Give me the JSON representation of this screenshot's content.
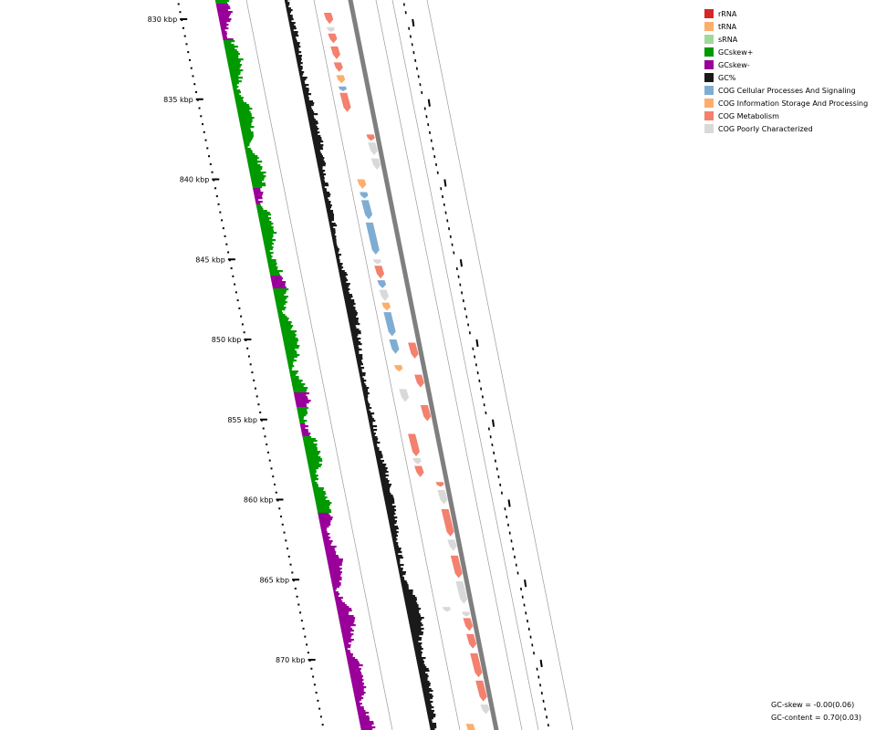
{
  "legend": [
    {
      "label": "rRNA",
      "color": "#d62728"
    },
    {
      "label": "tRNA",
      "color": "#fdae6b"
    },
    {
      "label": "sRNA",
      "color": "#a1d99b"
    },
    {
      "label": "GCskew+",
      "color": "#009900"
    },
    {
      "label": "GCskew-",
      "color": "#990099"
    },
    {
      "label": "GC%",
      "color": "#1a1a1a"
    },
    {
      "label": "COG Cellular Processes And Signaling",
      "color": "#7fadd2"
    },
    {
      "label": "COG Information Storage And Processing",
      "color": "#fdae6b"
    },
    {
      "label": "COG Metabolism",
      "color": "#f4806e"
    },
    {
      "label": "COG Poorly Characterized",
      "color": "#d9d9d9"
    }
  ],
  "ticks": [
    {
      "kbp": 830,
      "label": "830 kbp"
    },
    {
      "kbp": 835,
      "label": "835 kbp"
    },
    {
      "kbp": 840,
      "label": "840 kbp"
    },
    {
      "kbp": 845,
      "label": "845 kbp"
    },
    {
      "kbp": 850,
      "label": "850 kbp"
    },
    {
      "kbp": 855,
      "label": "855 kbp"
    },
    {
      "kbp": 860,
      "label": "860 kbp"
    },
    {
      "kbp": 865,
      "label": "865 kbp"
    },
    {
      "kbp": 870,
      "label": "870 kbp"
    }
  ],
  "stats": {
    "gc_skew": "GC-skew = -0.00(0.06)",
    "gc_content": "GC-content = 0.70(0.03)"
  },
  "features": [
    {
      "start": 829.6,
      "end": 830.3,
      "cog": "COG Metabolism",
      "ring": "outer"
    },
    {
      "start": 830.5,
      "end": 830.8,
      "cog": "COG Poorly Characterized",
      "ring": "outer"
    },
    {
      "start": 830.9,
      "end": 831.5,
      "cog": "COG Metabolism",
      "ring": "outer"
    },
    {
      "start": 831.7,
      "end": 832.5,
      "cog": "COG Metabolism",
      "ring": "outer"
    },
    {
      "start": 832.7,
      "end": 833.3,
      "cog": "COG Metabolism",
      "ring": "outer"
    },
    {
      "start": 833.5,
      "end": 834.0,
      "cog": "COG Information Storage And Processing",
      "ring": "outer"
    },
    {
      "start": 834.2,
      "end": 834.5,
      "cog": "COG Cellular Processes And Signaling",
      "ring": "outer"
    },
    {
      "start": 834.6,
      "end": 835.8,
      "cog": "COG Metabolism",
      "ring": "outer"
    },
    {
      "start": 837.2,
      "end": 837.6,
      "cog": "COG Metabolism",
      "ring": "inner"
    },
    {
      "start": 837.7,
      "end": 838.5,
      "cog": "COG Poorly Characterized",
      "ring": "inner"
    },
    {
      "start": 838.7,
      "end": 839.4,
      "cog": "COG Poorly Characterized",
      "ring": "inner"
    },
    {
      "start": 840.0,
      "end": 840.6,
      "cog": "COG Information Storage And Processing",
      "ring": "outer"
    },
    {
      "start": 840.8,
      "end": 841.2,
      "cog": "COG Cellular Processes And Signaling",
      "ring": "outer"
    },
    {
      "start": 841.3,
      "end": 842.5,
      "cog": "COG Cellular Processes And Signaling",
      "ring": "outer"
    },
    {
      "start": 842.7,
      "end": 844.7,
      "cog": "COG Cellular Processes And Signaling",
      "ring": "outer"
    },
    {
      "start": 845.0,
      "end": 845.3,
      "cog": "COG Poorly Characterized",
      "ring": "outer"
    },
    {
      "start": 845.4,
      "end": 846.2,
      "cog": "COG Metabolism",
      "ring": "outer"
    },
    {
      "start": 846.3,
      "end": 846.8,
      "cog": "COG Cellular Processes And Signaling",
      "ring": "outer"
    },
    {
      "start": 846.9,
      "end": 847.6,
      "cog": "COG Poorly Characterized",
      "ring": "outer"
    },
    {
      "start": 847.7,
      "end": 848.2,
      "cog": "COG Information Storage And Processing",
      "ring": "outer"
    },
    {
      "start": 848.3,
      "end": 849.8,
      "cog": "COG Cellular Processes And Signaling",
      "ring": "outer"
    },
    {
      "start": 850.0,
      "end": 850.9,
      "cog": "COG Cellular Processes And Signaling",
      "ring": "outer"
    },
    {
      "start": 850.2,
      "end": 851.2,
      "cog": "COG Metabolism",
      "ring": "inner"
    },
    {
      "start": 851.6,
      "end": 852.0,
      "cog": "COG Information Storage And Processing",
      "ring": "outer"
    },
    {
      "start": 852.2,
      "end": 853.0,
      "cog": "COG Metabolism",
      "ring": "inner"
    },
    {
      "start": 853.1,
      "end": 853.9,
      "cog": "COG Poorly Characterized",
      "ring": "outer"
    },
    {
      "start": 854.1,
      "end": 855.1,
      "cog": "COG Metabolism",
      "ring": "inner"
    },
    {
      "start": 855.9,
      "end": 857.3,
      "cog": "COG Metabolism",
      "ring": "outer"
    },
    {
      "start": 857.4,
      "end": 857.8,
      "cog": "COG Poorly Characterized",
      "ring": "outer"
    },
    {
      "start": 857.9,
      "end": 858.6,
      "cog": "COG Metabolism",
      "ring": "outer"
    },
    {
      "start": 858.9,
      "end": 859.2,
      "cog": "COG Metabolism",
      "ring": "inner"
    },
    {
      "start": 859.4,
      "end": 860.3,
      "cog": "COG Poorly Characterized",
      "ring": "inner"
    },
    {
      "start": 860.6,
      "end": 862.3,
      "cog": "COG Metabolism",
      "ring": "inner"
    },
    {
      "start": 862.5,
      "end": 863.2,
      "cog": "COG Poorly Characterized",
      "ring": "inner"
    },
    {
      "start": 863.5,
      "end": 864.9,
      "cog": "COG Metabolism",
      "ring": "inner"
    },
    {
      "start": 865.1,
      "end": 866.5,
      "cog": "COG Poorly Characterized",
      "ring": "inner"
    },
    {
      "start": 866.7,
      "end": 867.0,
      "cog": "COG Poorly Characterized",
      "ring": "outer"
    },
    {
      "start": 867.0,
      "end": 867.3,
      "cog": "COG Poorly Characterized",
      "ring": "inner"
    },
    {
      "start": 867.4,
      "end": 868.2,
      "cog": "COG Metabolism",
      "ring": "inner"
    },
    {
      "start": 868.4,
      "end": 869.3,
      "cog": "COG Metabolism",
      "ring": "inner"
    },
    {
      "start": 869.6,
      "end": 871.1,
      "cog": "COG Metabolism",
      "ring": "inner"
    },
    {
      "start": 871.3,
      "end": 872.6,
      "cog": "COG Metabolism",
      "ring": "inner"
    },
    {
      "start": 872.8,
      "end": 873.4,
      "cog": "COG Poorly Characterized",
      "ring": "inner"
    },
    {
      "start": 874.0,
      "end": 874.8,
      "cog": "COG Information Storage And Processing",
      "ring": "outer"
    }
  ]
}
